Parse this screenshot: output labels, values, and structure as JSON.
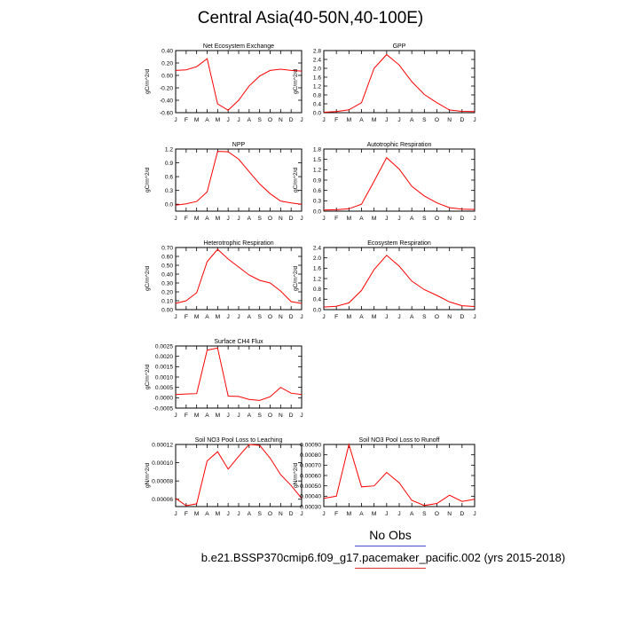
{
  "title": "Central Asia(40-50N,40-100E)",
  "legend": {
    "label": "No Obs",
    "line_colors": [
      "#4a4ad8",
      "#d83434"
    ]
  },
  "caption": "b.e21.BSSP370cmip6.f09_g17.pacemaker_pacific.002 (yrs 2015-2018)",
  "colors": {
    "series": "#ff0000",
    "axis": "#000000"
  },
  "chart_data": [
    {
      "type": "line",
      "title": "Net Ecosystem Exchange",
      "ylabel": "gC/m^2/d",
      "categories": [
        "J",
        "F",
        "M",
        "A",
        "M",
        "J",
        "J",
        "A",
        "S",
        "O",
        "N",
        "D",
        "J"
      ],
      "ylim": [
        -0.6,
        0.4
      ],
      "yticks": [
        "0.40",
        "0.20",
        "0.00",
        "-0.20",
        "-0.40",
        "-0.60"
      ],
      "ytick_values": [
        0.4,
        0.2,
        0.0,
        -0.2,
        -0.4,
        -0.6
      ],
      "values": [
        0.08,
        0.09,
        0.14,
        0.27,
        -0.46,
        -0.56,
        -0.4,
        -0.17,
        -0.01,
        0.08,
        0.1,
        0.08,
        0.07
      ]
    },
    {
      "type": "line",
      "title": "GPP",
      "ylabel": "gC/m^2/d",
      "categories": [
        "J",
        "F",
        "M",
        "A",
        "M",
        "J",
        "J",
        "A",
        "S",
        "O",
        "N",
        "D",
        "J"
      ],
      "ylim": [
        0,
        2.8
      ],
      "yticks": [
        "2.8",
        "2.4",
        "2.0",
        "1.6",
        "1.2",
        "0.8",
        "0.4",
        "0.0"
      ],
      "ytick_values": [
        2.8,
        2.4,
        2.0,
        1.6,
        1.2,
        0.8,
        0.4,
        0.0
      ],
      "values": [
        0.02,
        0.05,
        0.13,
        0.45,
        2.0,
        2.62,
        2.15,
        1.4,
        0.82,
        0.45,
        0.12,
        0.06,
        0.05
      ]
    },
    {
      "type": "line",
      "title": "NPP",
      "ylabel": "gC/m^2/d",
      "categories": [
        "J",
        "F",
        "M",
        "A",
        "M",
        "J",
        "J",
        "A",
        "S",
        "O",
        "N",
        "D",
        "J"
      ],
      "ylim": [
        -0.15,
        1.2
      ],
      "yticks": [
        "1.2",
        "0.9",
        "0.6",
        "0.3",
        "0.0"
      ],
      "ytick_values": [
        1.2,
        0.9,
        0.6,
        0.3,
        0.0
      ],
      "values": [
        -0.02,
        0.01,
        0.06,
        0.27,
        1.15,
        1.14,
        0.98,
        0.71,
        0.44,
        0.23,
        0.07,
        0.03,
        0.0
      ]
    },
    {
      "type": "line",
      "title": "Autotrophic Respiration",
      "ylabel": "gC/m^2/d",
      "categories": [
        "J",
        "F",
        "M",
        "A",
        "M",
        "J",
        "J",
        "A",
        "S",
        "O",
        "N",
        "D",
        "J"
      ],
      "ylim": [
        0,
        1.8
      ],
      "yticks": [
        "1.8",
        "1.5",
        "1.2",
        "0.9",
        "0.6",
        "0.3",
        "0.0"
      ],
      "ytick_values": [
        1.8,
        1.5,
        1.2,
        0.9,
        0.6,
        0.3,
        0.0
      ],
      "values": [
        0.03,
        0.04,
        0.07,
        0.2,
        0.87,
        1.55,
        1.22,
        0.72,
        0.44,
        0.24,
        0.1,
        0.06,
        0.05
      ]
    },
    {
      "type": "line",
      "title": "Heterotrophic Respiration",
      "ylabel": "gC/m^2/d",
      "categories": [
        "J",
        "F",
        "M",
        "A",
        "M",
        "J",
        "J",
        "A",
        "S",
        "O",
        "N",
        "D",
        "J"
      ],
      "ylim": [
        0,
        0.7
      ],
      "yticks": [
        "0.70",
        "0.60",
        "0.50",
        "0.40",
        "0.30",
        "0.20",
        "0.10",
        "0.00"
      ],
      "ytick_values": [
        0.7,
        0.6,
        0.5,
        0.4,
        0.3,
        0.2,
        0.1,
        0.0
      ],
      "values": [
        0.07,
        0.1,
        0.19,
        0.54,
        0.68,
        0.57,
        0.48,
        0.39,
        0.33,
        0.3,
        0.21,
        0.09,
        0.07
      ]
    },
    {
      "type": "line",
      "title": "Ecosystem Respiration",
      "ylabel": "gC/m^2/d",
      "categories": [
        "J",
        "F",
        "M",
        "A",
        "M",
        "J",
        "J",
        "A",
        "S",
        "O",
        "N",
        "D",
        "J"
      ],
      "ylim": [
        0,
        2.4
      ],
      "yticks": [
        "2.4",
        "2.0",
        "1.6",
        "1.2",
        "0.8",
        "0.4",
        "0.0"
      ],
      "ytick_values": [
        2.4,
        2.0,
        1.6,
        1.2,
        0.8,
        0.4,
        0.0
      ],
      "values": [
        0.1,
        0.13,
        0.26,
        0.74,
        1.55,
        2.1,
        1.68,
        1.1,
        0.77,
        0.55,
        0.3,
        0.15,
        0.12
      ]
    },
    {
      "type": "line",
      "title": "Surface CH4 Flux",
      "ylabel": "gC/m^2/d",
      "categories": [
        "J",
        "F",
        "M",
        "A",
        "M",
        "J",
        "J",
        "A",
        "S",
        "O",
        "N",
        "D",
        "J"
      ],
      "ylim": [
        -0.0005,
        0.0025
      ],
      "yticks": [
        "0.0025",
        "0.0020",
        "0.0015",
        "0.0010",
        "0.0005",
        "0.0000",
        "-0.0005"
      ],
      "ytick_values": [
        0.0025,
        0.002,
        0.0015,
        0.001,
        0.0005,
        0.0,
        -0.0005
      ],
      "values": [
        0.00015,
        0.00018,
        0.0002,
        0.0023,
        0.0024,
        8e-05,
        6e-05,
        -8e-05,
        -0.00013,
        5e-05,
        0.0005,
        0.00022,
        0.00015
      ]
    },
    {
      "type": "line",
      "title": "Soil NO3 Pool Loss to Leaching",
      "ylabel": "gN/m^2/d",
      "categories": [
        "J",
        "F",
        "M",
        "A",
        "M",
        "J",
        "J",
        "A",
        "S",
        "O",
        "N",
        "D",
        "J"
      ],
      "ylim": [
        5.2e-05,
        0.00012
      ],
      "yticks": [
        "0.00012",
        "0.00010",
        "0.00008",
        "0.00006"
      ],
      "ytick_values": [
        0.00012,
        0.0001,
        8e-05,
        6e-05
      ],
      "values": [
        6.1e-05,
        5.3e-05,
        5.5e-05,
        0.000102,
        0.000112,
        9.3e-05,
        0.000107,
        0.00012,
        0.000119,
        0.000105,
        8.7e-05,
        7.5e-05,
        6.1e-05
      ]
    },
    {
      "type": "line",
      "title": "Soil NO3 Pool Loss to Runoff",
      "ylabel": "gN/m^2/d",
      "categories": [
        "J",
        "F",
        "M",
        "A",
        "M",
        "J",
        "J",
        "A",
        "S",
        "O",
        "N",
        "D",
        "J"
      ],
      "ylim": [
        0.0003,
        0.0009
      ],
      "yticks": [
        "0.00090",
        "0.00080",
        "0.00070",
        "0.00060",
        "0.00050",
        "0.00040",
        "0.00030"
      ],
      "ytick_values": [
        0.0009,
        0.0008,
        0.0007,
        0.0006,
        0.0005,
        0.0004,
        0.0003
      ],
      "values": [
        0.00038,
        0.0004,
        0.0009,
        0.00049,
        0.0005,
        0.00063,
        0.00053,
        0.00036,
        0.00031,
        0.00033,
        0.00041,
        0.00035,
        0.00037
      ]
    }
  ]
}
